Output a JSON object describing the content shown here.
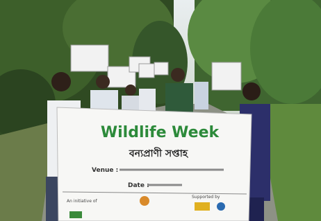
{
  "banner": {
    "title": "Wildlife Week",
    "subtitle": "বন্যপ্রাণী সপ্তাহ",
    "venue_label": "Venue :",
    "date_label": "Date :",
    "initiative_label": "An initiative of",
    "support_label": "Supported by"
  }
}
